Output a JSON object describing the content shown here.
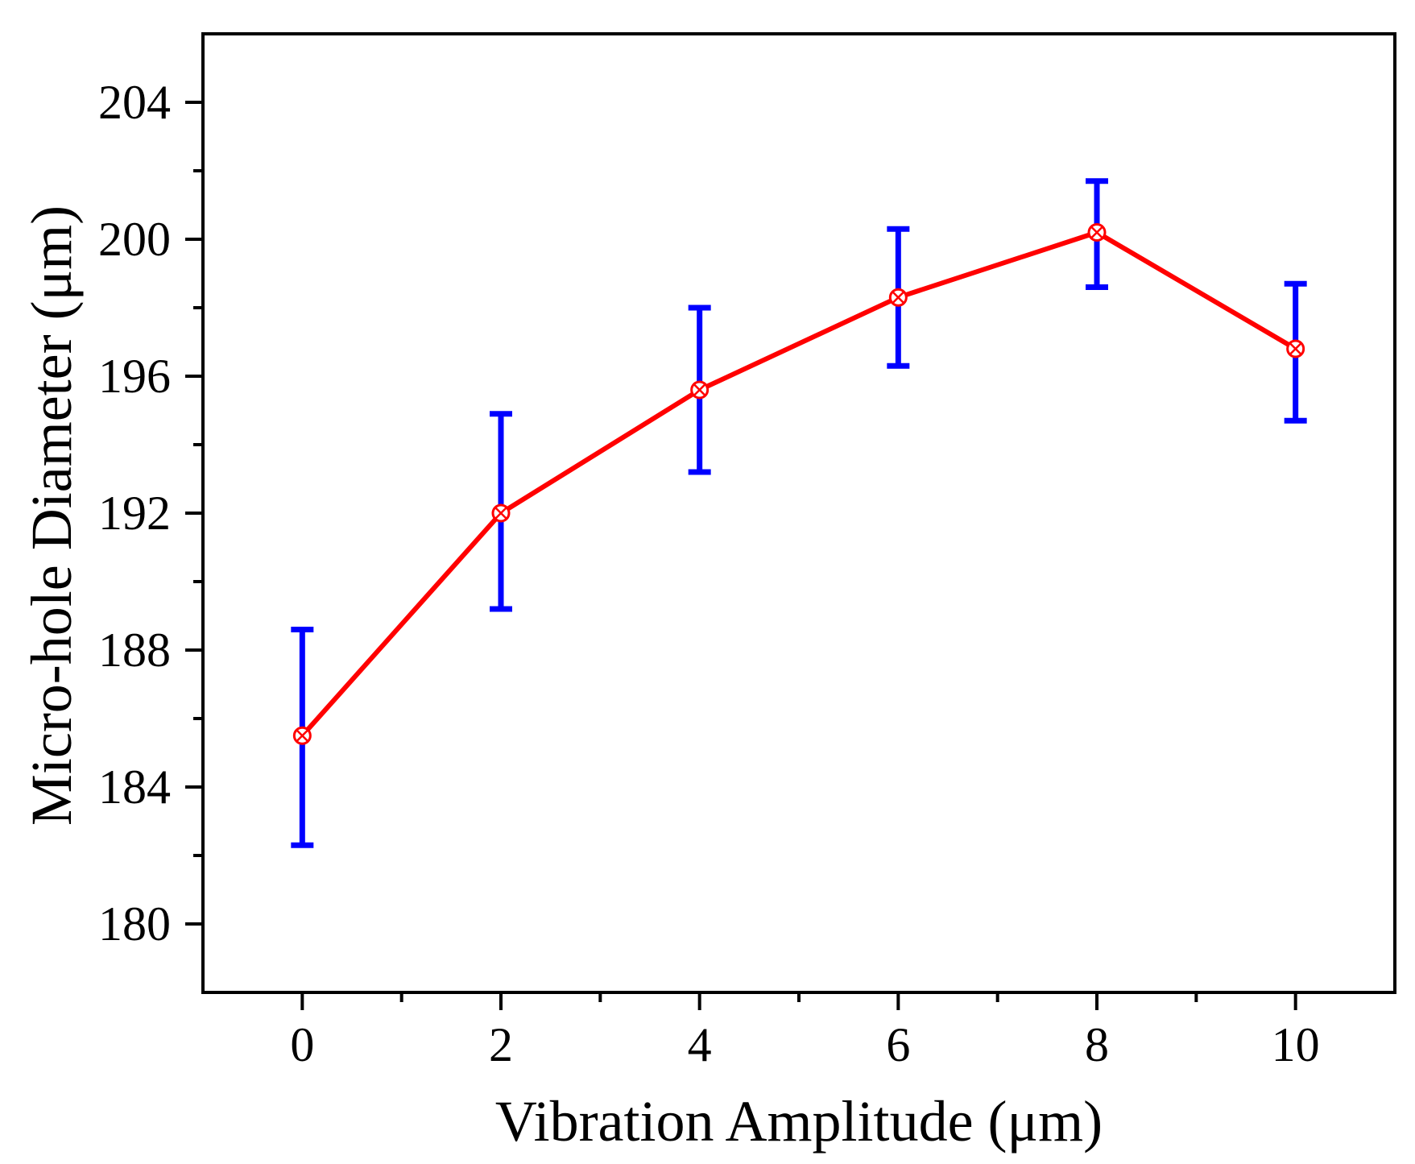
{
  "chart_data": {
    "type": "line",
    "title": "",
    "xlabel": "Vibration Amplitude (μm)",
    "ylabel": "Micro-hole Diameter (μm)",
    "xlim": [
      -1,
      11
    ],
    "ylim": [
      178,
      206
    ],
    "x_ticks": [
      0,
      2,
      4,
      6,
      8,
      10
    ],
    "x_tick_labels": [
      "0",
      "2",
      "4",
      "6",
      "8",
      "10"
    ],
    "y_ticks": [
      180,
      184,
      188,
      192,
      196,
      200,
      204
    ],
    "y_tick_labels": [
      "180",
      "184",
      "188",
      "192",
      "196",
      "200",
      "204"
    ],
    "y_minor_ticks": [
      182,
      186,
      190,
      194,
      198,
      202
    ],
    "grid": false,
    "legend": "none",
    "colors": {
      "line": "#ff0000",
      "marker": "#ff0000",
      "error_bar": "#0000ff",
      "axis": "#000000"
    },
    "series": [
      {
        "x": [
          0,
          2,
          4,
          6,
          8,
          10
        ],
        "y": [
          185.5,
          192.0,
          195.6,
          198.3,
          200.2,
          196.8
        ],
        "y_upper": [
          188.6,
          194.9,
          198.0,
          200.3,
          201.7,
          198.7
        ],
        "y_lower": [
          182.3,
          189.2,
          193.2,
          196.3,
          198.6,
          194.7
        ],
        "marker": "circle-x"
      }
    ]
  }
}
